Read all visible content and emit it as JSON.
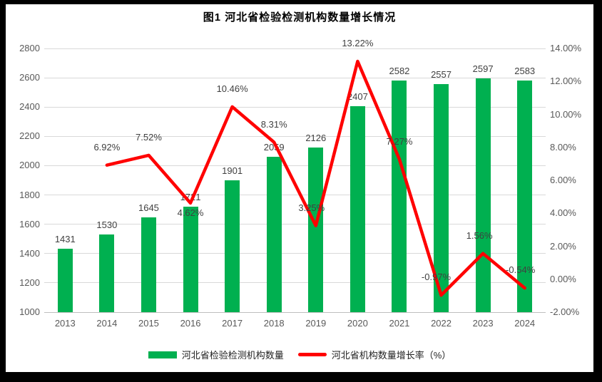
{
  "title": "图1 河北省检验检测机构数量增长情况",
  "colors": {
    "bar": "#00B050",
    "line": "#FF0000",
    "grid": "#D9D9D9",
    "axis_text": "#595959",
    "label_text": "#404040",
    "frame": "#000000"
  },
  "legend": {
    "bar_label": "河北省检验检测机构数量",
    "line_label": "河北省机构数量增长率（%）"
  },
  "chart_data": {
    "type": "bar+line combo",
    "title": "图1 河北省检验检测机构数量增长情况",
    "categories": [
      "2013",
      "2014",
      "2015",
      "2016",
      "2017",
      "2018",
      "2019",
      "2020",
      "2021",
      "2022",
      "2023",
      "2024"
    ],
    "series": [
      {
        "name": "河北省检验检测机构数量",
        "type": "bar",
        "axis": "left",
        "color": "#00B050",
        "values": [
          1431,
          1530,
          1645,
          1721,
          1901,
          2059,
          2126,
          2407,
          2582,
          2557,
          2597,
          2583
        ],
        "labels": [
          "1431",
          "1530",
          "1645",
          "1721",
          "1901",
          "2059",
          "2126",
          "2407",
          "2582",
          "2557",
          "2597",
          "2583"
        ]
      },
      {
        "name": "河北省机构数量增长率（%）",
        "type": "line",
        "axis": "right",
        "color": "#FF0000",
        "values": [
          null,
          6.92,
          7.52,
          4.62,
          10.46,
          8.31,
          3.25,
          13.22,
          7.27,
          -0.97,
          1.56,
          -0.54
        ],
        "labels": [
          null,
          "6.92%",
          "7.52%",
          "4.62%",
          "10.46%",
          "8.31%",
          "3.25%",
          "13.22%",
          "7.27%",
          "-0.97%",
          "1.56%",
          "-0.54%"
        ]
      }
    ],
    "left_axis": {
      "min": 1000,
      "max": 2800,
      "step": 200,
      "ticks": [
        "1000",
        "1200",
        "1400",
        "1600",
        "1800",
        "2000",
        "2200",
        "2400",
        "2600",
        "2800"
      ]
    },
    "right_axis": {
      "min": -2,
      "max": 14,
      "step": 2,
      "ticks": [
        "-2.00%",
        "0.00%",
        "2.00%",
        "4.00%",
        "6.00%",
        "8.00%",
        "10.00%",
        "12.00%",
        "14.00%"
      ]
    },
    "grid": true,
    "legend_position": "bottom"
  }
}
